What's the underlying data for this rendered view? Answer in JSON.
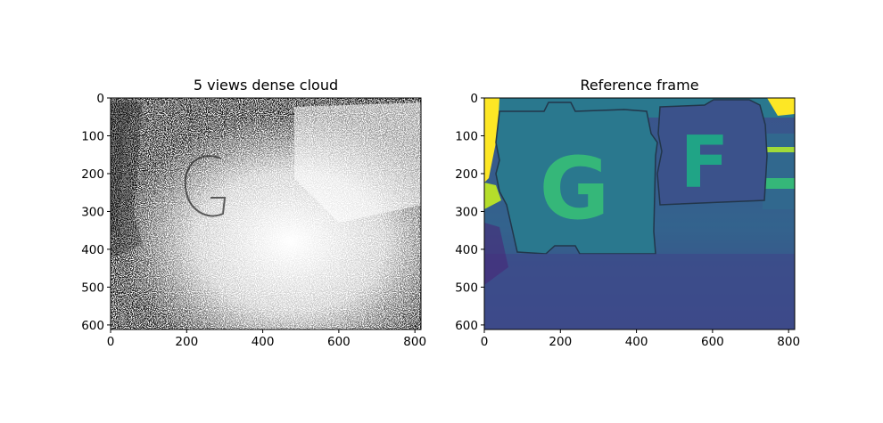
{
  "chart_data": [
    {
      "type": "image",
      "title": "5 views dense cloud",
      "colormap": "gray",
      "xlim": [
        0,
        816
      ],
      "ylim": [
        612,
        0
      ],
      "xticks": [
        0,
        200,
        400,
        600,
        800
      ],
      "yticks": [
        0,
        100,
        200,
        300,
        400,
        500,
        600
      ],
      "xtick_labels": [
        "0",
        "200",
        "400",
        "600",
        "800"
      ],
      "ytick_labels": [
        "0",
        "100",
        "200",
        "300",
        "400",
        "500",
        "600"
      ]
    },
    {
      "type": "image",
      "title": "Reference frame",
      "colormap": "viridis",
      "content": [
        "G",
        "F"
      ],
      "xlim": [
        0,
        816
      ],
      "ylim": [
        612,
        0
      ],
      "xticks": [
        0,
        200,
        400,
        600,
        800
      ],
      "yticks": [
        0,
        100,
        200,
        300,
        400,
        500,
        600
      ],
      "xtick_labels": [
        "0",
        "200",
        "400",
        "600",
        "800"
      ],
      "ytick_labels": [
        "0",
        "100",
        "200",
        "300",
        "400",
        "500",
        "600"
      ]
    }
  ]
}
